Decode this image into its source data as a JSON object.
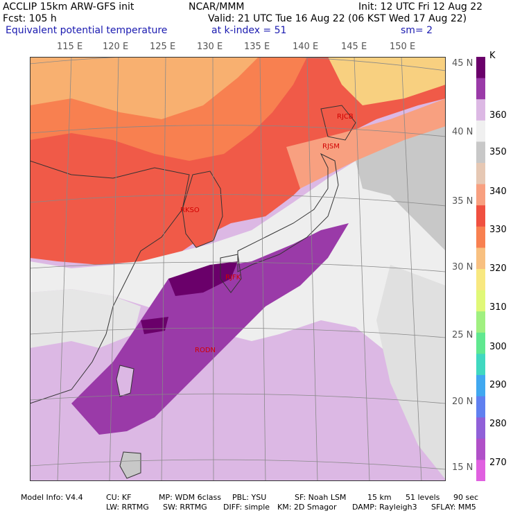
{
  "header": {
    "line1_left": "ACCLIP 15km ARW-GFS init",
    "line1_center": "NCAR/MMM",
    "line1_right": "Init: 12 UTC Fri 12 Aug 22",
    "line2_left": "Fcst:  105 h",
    "line2_right": "Valid: 21 UTC Tue 16 Aug 22 (06 KST Wed 17 Aug 22)",
    "line3_left": "Equivalent potential temperature",
    "line3_center": "at k-index =  51",
    "line3_right": "sm= 2"
  },
  "longitude_labels": [
    "115 E",
    "120 E",
    "125 E",
    "130 E",
    "135 E",
    "140 E",
    "145 E",
    "150 E"
  ],
  "latitude_labels": [
    "45 N",
    "40 N",
    "35 N",
    "30 N",
    "25 N",
    "20 N",
    "15 N"
  ],
  "stations": [
    "RJCB",
    "RJSM",
    "RKSO",
    "RJFK",
    "RODN"
  ],
  "colorbar": {
    "unit": "K",
    "labels": [
      "360",
      "350",
      "340",
      "330",
      "320",
      "310",
      "300",
      "290",
      "280",
      "270"
    ],
    "colors": [
      "#6a006a",
      "#9a3aa8",
      "#dcb8e4",
      "#f0f0f0",
      "#c8c8c8",
      "#e6c8b4",
      "#f8a080",
      "#f05040",
      "#f88050",
      "#f8c080",
      "#f8e880",
      "#e0f878",
      "#a0f080",
      "#60e890",
      "#40d8c0",
      "#40a8f0",
      "#6080f0",
      "#9060d8",
      "#b050c8",
      "#e060e0"
    ]
  },
  "footer": {
    "line1": [
      "Model Info: V4.4",
      "CU: KF",
      "MP: WDM 6class",
      "PBL: YSU",
      "SF: Noah LSM",
      "15 km",
      "51 levels",
      "90 sec"
    ],
    "line2": [
      "LW: RRTMG",
      "SW: RRTMG",
      "DIFF: simple",
      "KM: 2D Smagor",
      "DAMP: Rayleigh3",
      "SFLAY: MM5"
    ]
  }
}
